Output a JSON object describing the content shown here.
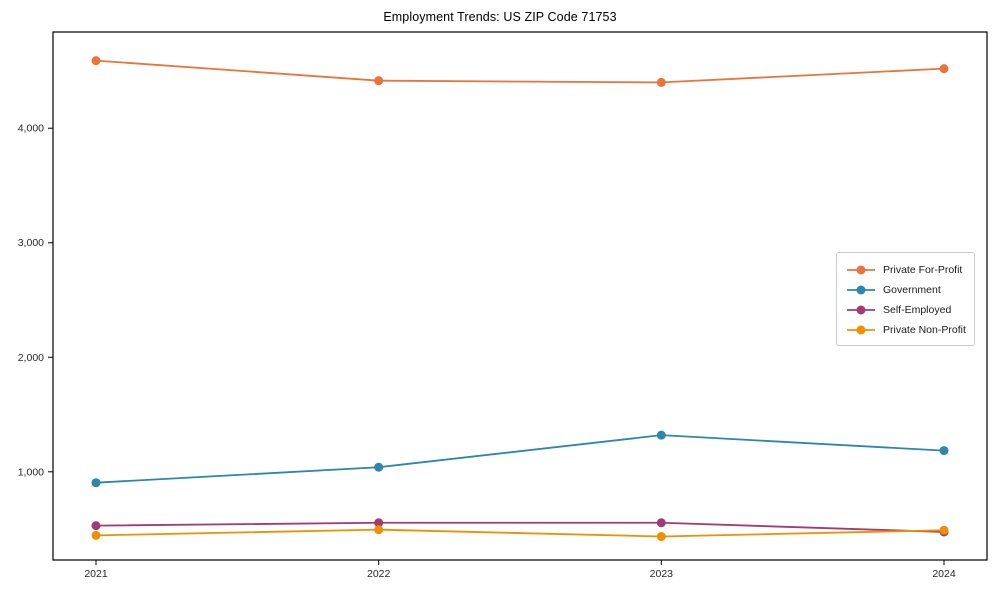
{
  "title": "Employment Trends: US ZIP Code 71753",
  "chart_data": {
    "type": "line",
    "title": "Employment Trends: US ZIP Code 71753",
    "categories": [
      "2021",
      "2022",
      "2023",
      "2024"
    ],
    "series": [
      {
        "name": "Private For-Profit",
        "color": "#E8743B",
        "values": [
          4590,
          4415,
          4400,
          4520
        ]
      },
      {
        "name": "Government",
        "color": "#2E86AB",
        "values": [
          905,
          1040,
          1320,
          1185
        ]
      },
      {
        "name": "Self-Employed",
        "color": "#A23B72",
        "values": [
          530,
          555,
          555,
          475
        ]
      },
      {
        "name": "Private Non-Profit",
        "color": "#F18F01",
        "values": [
          445,
          495,
          435,
          490
        ]
      }
    ],
    "xlabel": "",
    "ylabel": "",
    "ylim": [
      230,
      4840
    ],
    "y_ticks": [
      1000,
      2000,
      3000,
      4000
    ],
    "y_tick_labels": [
      "1,000",
      "2,000",
      "3,000",
      "4,000"
    ],
    "grid": false,
    "legend_position": "center-right",
    "marker": "circle",
    "line_width": 1.8,
    "marker_radius": 4.5,
    "background_color": "#ffffff",
    "axis_color": "#000000",
    "tick_label_color": "#262626"
  }
}
